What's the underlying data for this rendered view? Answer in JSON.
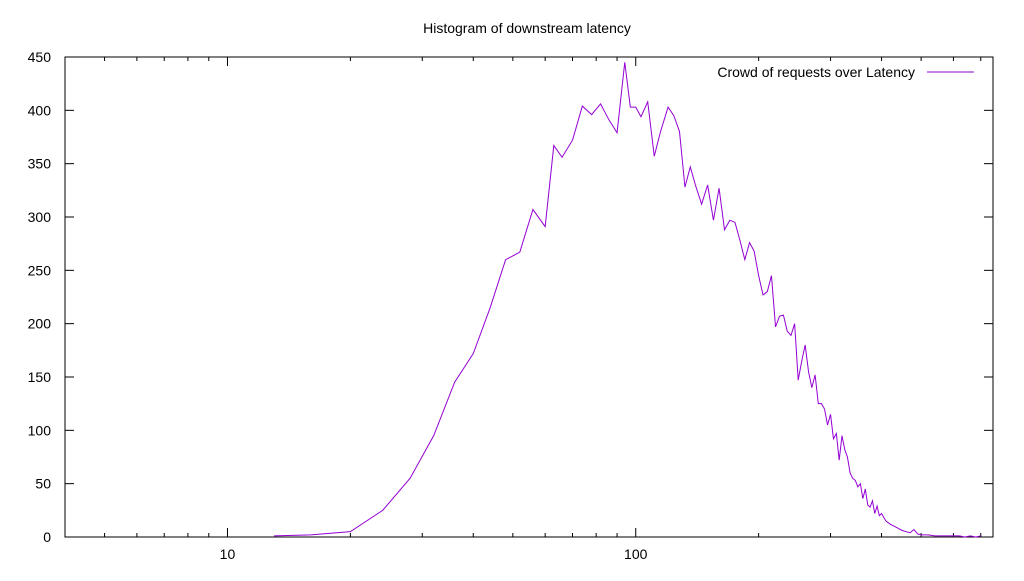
{
  "chart_data": {
    "type": "line",
    "title": "Histogram of downstream latency",
    "xlabel": "",
    "ylabel": "",
    "x_scale": "log",
    "xlim": [
      4,
      750
    ],
    "ylim": [
      0,
      450
    ],
    "x_ticks": [
      10,
      100
    ],
    "y_ticks": [
      0,
      50,
      100,
      150,
      200,
      250,
      300,
      350,
      400,
      450
    ],
    "grid": false,
    "legend_position": "top-right",
    "series": [
      {
        "name": "Crowd of requests over Latency",
        "color": "#9400d3",
        "x": [
          13,
          16,
          20,
          24,
          28,
          32,
          36,
          40,
          44,
          48,
          52,
          56,
          60,
          63,
          66,
          70,
          74,
          78,
          82,
          86,
          90,
          94,
          97,
          100,
          103,
          107,
          111,
          115,
          120,
          124,
          128,
          132,
          136,
          140,
          145,
          150,
          155,
          160,
          165,
          170,
          175,
          180,
          185,
          190,
          195,
          200,
          205,
          210,
          215,
          220,
          225,
          230,
          235,
          240,
          245,
          250,
          255,
          260,
          265,
          270,
          275,
          280,
          285,
          290,
          295,
          300,
          305,
          310,
          315,
          320,
          325,
          330,
          335,
          340,
          345,
          350,
          355,
          360,
          365,
          370,
          375,
          380,
          385,
          390,
          395,
          400,
          410,
          420,
          430,
          440,
          450,
          460,
          470,
          480,
          490,
          500,
          520,
          540,
          560,
          580,
          600,
          620,
          640,
          660,
          680,
          700
        ],
        "values": [
          1,
          2,
          5,
          25,
          55,
          95,
          145,
          172,
          215,
          260,
          267,
          307,
          291,
          367,
          356,
          372,
          404,
          396,
          406,
          391,
          379,
          445,
          403,
          403,
          394,
          408,
          357,
          380,
          403,
          395,
          380,
          328,
          347,
          330,
          312,
          330,
          297,
          327,
          288,
          297,
          295,
          278,
          260,
          276,
          268,
          245,
          227,
          230,
          245,
          197,
          207,
          208,
          193,
          189,
          200,
          147,
          165,
          180,
          155,
          140,
          152,
          125,
          125,
          120,
          105,
          115,
          92,
          97,
          72,
          95,
          82,
          75,
          60,
          55,
          53,
          47,
          50,
          36,
          45,
          30,
          28,
          34,
          22,
          29,
          20,
          22,
          15,
          12,
          10,
          8,
          6,
          5,
          4,
          7,
          3,
          2,
          2,
          1,
          1,
          1,
          1,
          1,
          0,
          1,
          0,
          1
        ]
      }
    ]
  }
}
